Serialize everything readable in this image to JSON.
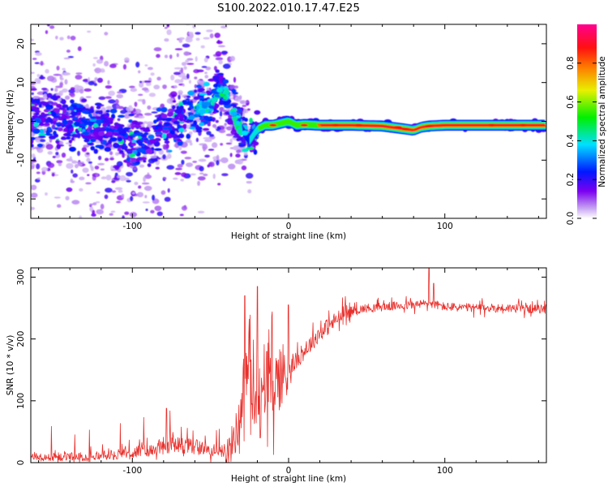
{
  "title": "S100.2022.010.17.47.E25",
  "chart_data": [
    {
      "type": "heatmap",
      "name": "spectrogram",
      "xlabel": "Height of straight line (km)",
      "ylabel": "Frequency (Hz)",
      "xlim": [
        -165,
        165
      ],
      "ylim": [
        -25,
        25
      ],
      "x_ticks": [
        -100,
        0,
        100
      ],
      "x_tick_labels": [
        "-100",
        "0",
        "100"
      ],
      "y_ticks": [
        -20,
        -10,
        0,
        10,
        20
      ],
      "y_tick_labels": [
        "-20",
        "-10",
        "0",
        "10",
        "20"
      ],
      "ridge": {
        "x": [
          -165,
          -150,
          -130,
          -110,
          -95,
          -85,
          -75,
          -65,
          -58,
          -50,
          -45,
          -40,
          -35,
          -30,
          -25,
          -20,
          -15,
          -10,
          -5,
          0,
          5,
          10,
          20,
          40,
          60,
          75,
          80,
          85,
          90,
          100,
          120,
          140,
          165
        ],
        "freq": [
          0,
          0.5,
          -1,
          -3,
          -6,
          -4,
          -1,
          1,
          3,
          4,
          8,
          7,
          2,
          -2,
          -5,
          -2,
          -1,
          -1,
          -0.5,
          0,
          -1,
          -0.8,
          -1,
          -1,
          -1.2,
          -2,
          -2.3,
          -1.5,
          -1.2,
          -1,
          -1,
          -1,
          -1
        ]
      },
      "colorbar": {
        "label": "Normalized spectral amplitude",
        "range": [
          0,
          1
        ],
        "ticks": [
          0.0,
          0.2,
          0.4,
          0.6,
          0.8
        ],
        "tick_labels": [
          "0.0",
          "0.2",
          "0.4",
          "0.6",
          "0.8"
        ]
      }
    },
    {
      "type": "line",
      "name": "snr",
      "xlabel": "Height of straight line (km)",
      "ylabel": "SNR (10 * v/v)",
      "xlim": [
        -165,
        165
      ],
      "ylim": [
        0,
        315
      ],
      "x_ticks": [
        -100,
        0,
        100
      ],
      "x_tick_labels": [
        "-100",
        "0",
        "100"
      ],
      "y_ticks": [
        0,
        100,
        200,
        300
      ],
      "y_tick_labels": [
        "0",
        "100",
        "200",
        "300"
      ],
      "color": "#e8302c",
      "envelope": {
        "x": [
          -165,
          -130,
          -110,
          -90,
          -75,
          -60,
          -45,
          -38,
          -32,
          -28,
          -25,
          -22,
          -20,
          -17,
          -15,
          -10,
          0,
          10,
          20,
          30,
          40,
          50,
          60,
          80,
          90,
          95,
          100,
          120,
          140,
          165
        ],
        "y": [
          8,
          10,
          14,
          20,
          30,
          26,
          18,
          20,
          60,
          140,
          160,
          90,
          120,
          100,
          110,
          130,
          150,
          180,
          210,
          230,
          245,
          250,
          252,
          255,
          258,
          255,
          252,
          250,
          250,
          248
        ]
      },
      "peaks": {
        "x": [
          -78,
          -28,
          -20,
          -18,
          -14,
          0,
          90,
          93
        ],
        "y": [
          88,
          270,
          285,
          40,
          180,
          255,
          315,
          290
        ]
      }
    }
  ]
}
